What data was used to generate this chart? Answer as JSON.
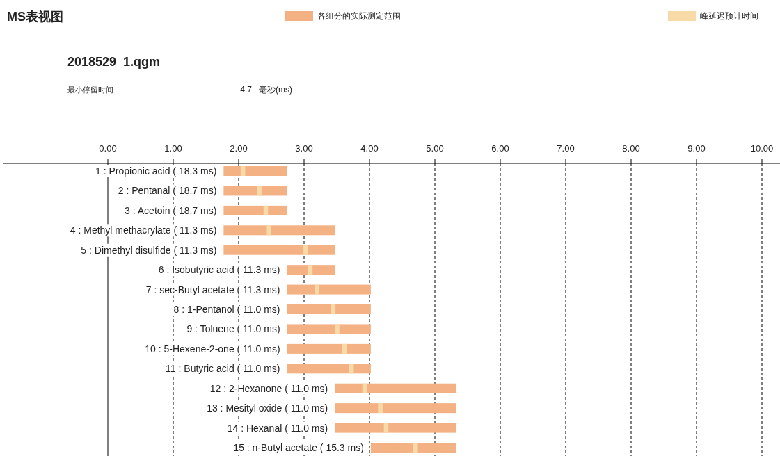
{
  "chart_data": {
    "type": "bar",
    "orientation": "horizontal",
    "title": "MS表视图",
    "annotations": [
      "2018529_1.qgm",
      "最小停留时间",
      "4.7",
      "毫秒(ms)"
    ],
    "categories": [
      "1 : Propionic acid ( 18.3 ms)",
      "2 : Pentanal ( 18.7 ms)",
      "3 : Acetoin ( 18.7 ms)",
      "4 : Methyl methacrylate ( 11.3 ms)",
      "5 : Dimethyl disulfide ( 11.3 ms)",
      "6 : Isobutyric acid ( 11.3 ms)",
      "7 : sec-Butyl acetate ( 11.3 ms)",
      "8 : 1-Pentanol ( 11.0 ms)",
      "9 : Toluene ( 11.0 ms)",
      "10 : 5-Hexene-2-one ( 11.0 ms)",
      "11 : Butyric acid ( 11.0 ms)",
      "12 : 2-Hexanone ( 11.0 ms)",
      "13 : Mesityl oxide ( 11.0 ms)",
      "14 : Hexanal ( 11.0 ms)",
      "15 : n-Butyl acetate ( 15.3 ms)"
    ],
    "series": [
      {
        "name": "各组分的实际测定范围",
        "color": "#f4b183",
        "base": [
          1.77,
          1.77,
          1.77,
          1.77,
          1.77,
          2.74,
          2.74,
          2.74,
          2.74,
          2.74,
          2.74,
          3.47,
          3.47,
          3.47,
          4.02
        ],
        "values": [
          0.97,
          0.97,
          0.97,
          1.7,
          1.7,
          0.73,
          1.28,
          1.28,
          1.28,
          1.28,
          1.28,
          1.85,
          1.85,
          1.85,
          1.3
        ]
      },
      {
        "name": "峰延迟预计时间",
        "color": "#f8d9a8",
        "base": [
          2.03,
          2.28,
          2.38,
          2.43,
          2.99,
          3.06,
          3.16,
          3.41,
          3.47,
          3.58,
          3.69,
          3.89,
          4.13,
          4.22,
          4.67
        ],
        "values": [
          0.07,
          0.07,
          0.07,
          0.07,
          0.07,
          0.07,
          0.07,
          0.07,
          0.07,
          0.07,
          0.07,
          0.07,
          0.07,
          0.07,
          0.07
        ]
      }
    ],
    "xlim": [
      0,
      10
    ],
    "xticks": [
      {
        "value": 0,
        "label": "0.00"
      },
      {
        "value": 1,
        "label": "1.00"
      },
      {
        "value": 2,
        "label": "2.00"
      },
      {
        "value": 3,
        "label": "3.00"
      },
      {
        "value": 4,
        "label": "4.00"
      },
      {
        "value": 5,
        "label": "5.00"
      },
      {
        "value": 6,
        "label": "6.00"
      },
      {
        "value": 7,
        "label": "7.00"
      },
      {
        "value": 8,
        "label": "8.00"
      },
      {
        "value": 9,
        "label": "9.00"
      },
      {
        "value": 10,
        "label": "10.00"
      }
    ],
    "grid": "x",
    "legend": "top"
  }
}
